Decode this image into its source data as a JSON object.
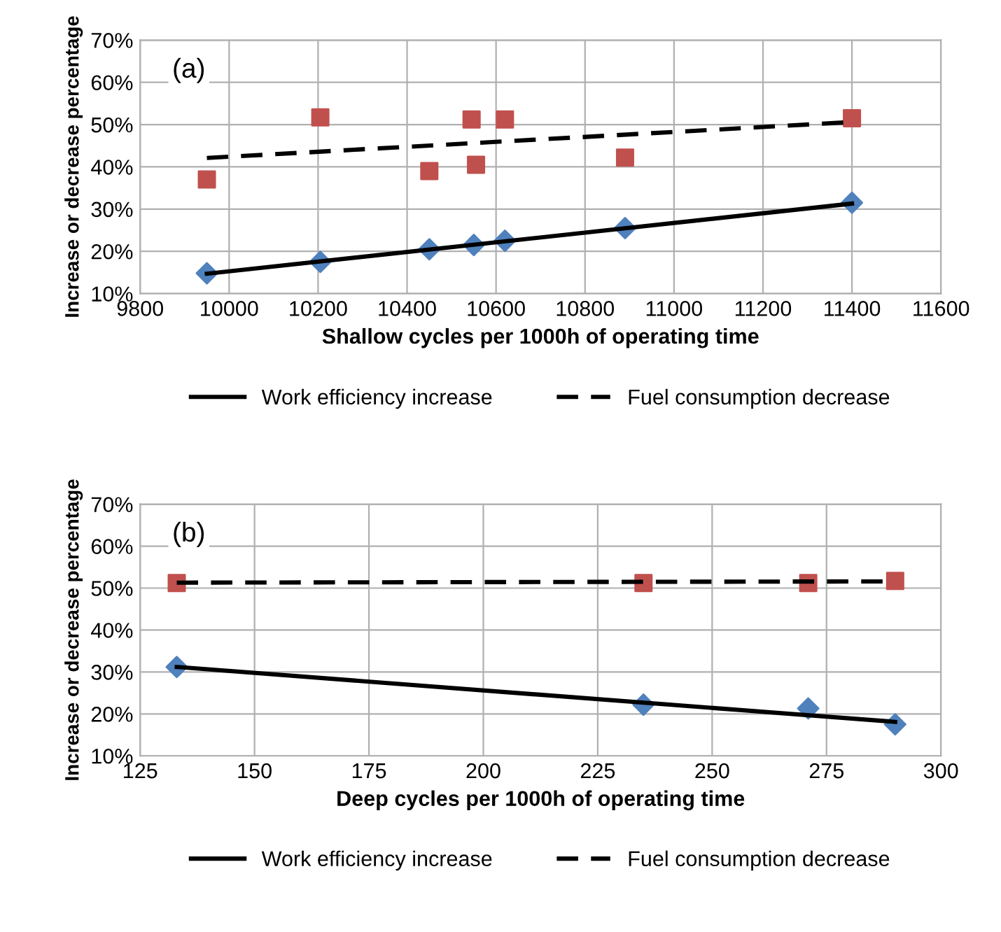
{
  "chart_data": [
    {
      "type": "scatter",
      "xlabel": "Shallow cycles per 1000h of operating time",
      "ylabel": "Increase or decrease percentage",
      "annotations": [
        "(a)"
      ],
      "xlim": [
        9800,
        11600
      ],
      "xticks": [
        9800,
        10000,
        10200,
        10400,
        10600,
        10800,
        11000,
        11200,
        11400,
        11600
      ],
      "ylim": [
        10,
        70
      ],
      "yticks": [
        {
          "value": 10,
          "label": "10%"
        },
        {
          "value": 20,
          "label": "20%"
        },
        {
          "value": 30,
          "label": "30%"
        },
        {
          "value": 40,
          "label": "40%"
        },
        {
          "value": 50,
          "label": "50%"
        },
        {
          "value": 60,
          "label": "60%"
        },
        {
          "value": 70,
          "label": "70%"
        }
      ],
      "grid": true,
      "legend": "bottom",
      "series": [
        {
          "color": "#4f81bd",
          "marker": "diamond",
          "x": [
            9950,
            10205,
            10450,
            10550,
            10620,
            10890,
            11400
          ],
          "values": [
            14.8,
            17.5,
            20.5,
            21.5,
            22.5,
            25.5,
            31.5
          ]
        },
        {
          "color": "#c0504d",
          "marker": "square",
          "x": [
            9950,
            10205,
            10450,
            10545,
            10555,
            10620,
            10890,
            11400
          ],
          "values": [
            37,
            51.7,
            39,
            51.2,
            40.5,
            51.2,
            42.2,
            51.5
          ]
        },
        {
          "type": "line",
          "name": "Work efficiency increase",
          "color": "#000000",
          "marker": "none",
          "line_style": "solid",
          "x": [
            9950,
            11400
          ],
          "values": [
            14.7,
            31.3
          ]
        },
        {
          "type": "line",
          "name": "Fuel consumption decrease",
          "color": "#000000",
          "marker": "none",
          "line_style": "dashed",
          "x": [
            9950,
            11400
          ],
          "values": [
            42.1,
            50.6
          ]
        }
      ]
    },
    {
      "type": "scatter",
      "xlabel": "Deep cycles per 1000h of operating time",
      "ylabel": "Increase or decrease percentage",
      "annotations": [
        "(b)"
      ],
      "xlim": [
        125,
        300
      ],
      "xticks": [
        125,
        150,
        175,
        200,
        225,
        250,
        275,
        300
      ],
      "ylim": [
        10,
        70
      ],
      "yticks": [
        {
          "value": 10,
          "label": "10%"
        },
        {
          "value": 20,
          "label": "20%"
        },
        {
          "value": 30,
          "label": "30%"
        },
        {
          "value": 40,
          "label": "40%"
        },
        {
          "value": 50,
          "label": "50%"
        },
        {
          "value": 60,
          "label": "60%"
        },
        {
          "value": 70,
          "label": "70%"
        }
      ],
      "grid": true,
      "legend": "bottom",
      "series": [
        {
          "color": "#4f81bd",
          "marker": "diamond",
          "x": [
            133,
            235,
            271,
            290
          ],
          "values": [
            31.2,
            22.2,
            21.3,
            17.5
          ]
        },
        {
          "color": "#c0504d",
          "marker": "square",
          "x": [
            133,
            235,
            271,
            290
          ],
          "values": [
            51.2,
            51.2,
            51.2,
            51.7
          ]
        },
        {
          "type": "line",
          "name": "Work efficiency increase",
          "color": "#000000",
          "marker": "none",
          "line_style": "solid",
          "x": [
            133,
            290
          ],
          "values": [
            31.2,
            18.1
          ]
        },
        {
          "type": "line",
          "name": "Fuel consumption decrease",
          "color": "#000000",
          "marker": "none",
          "line_style": "dashed",
          "x": [
            133,
            290
          ],
          "values": [
            51.3,
            51.6
          ]
        }
      ]
    }
  ]
}
